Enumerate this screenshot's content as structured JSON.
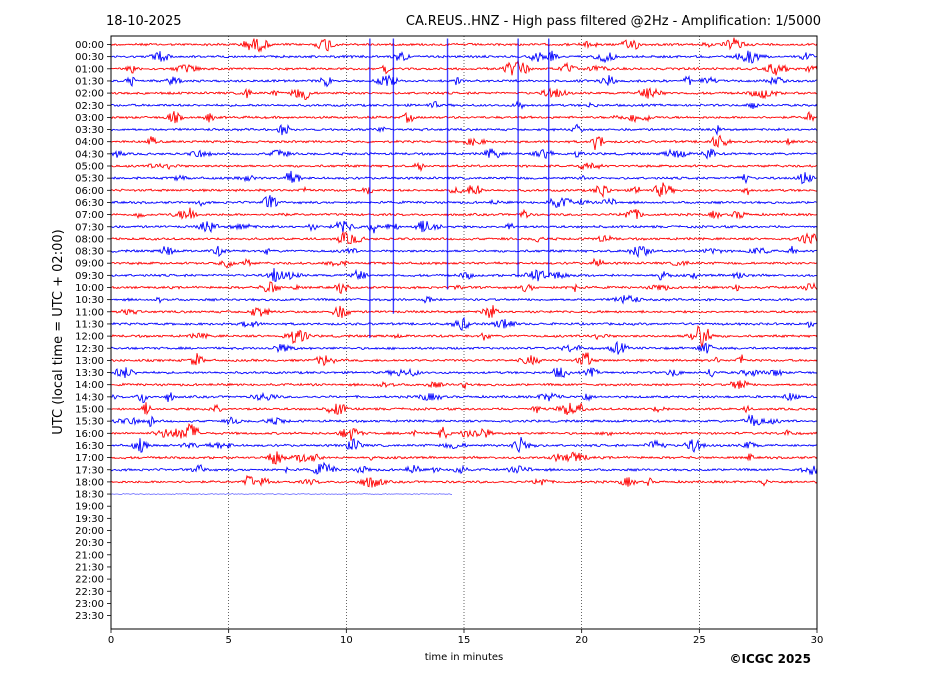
{
  "header": {
    "date": "18-10-2025",
    "title": "CA.REUS..HNZ - High pass filtered @2Hz - Amplification: 1/5000"
  },
  "footer": {
    "copyright": "©ICGC 2025"
  },
  "colors": {
    "trace_a": "#ff0000",
    "trace_b": "#0000ff",
    "axis": "#000000",
    "grid": "#000000"
  },
  "chart_data": {
    "type": "line",
    "title": "CA.REUS..HNZ - High pass filtered @2Hz - Amplification: 1/5000",
    "xlabel": "time in minutes",
    "ylabel": "UTC (local time = UTC + 02:00)",
    "xlim": [
      0,
      30
    ],
    "x_ticks": [
      "0",
      "5",
      "10",
      "15",
      "20",
      "25",
      "30"
    ],
    "y_ticks": [
      "00:00",
      "00:30",
      "01:00",
      "01:30",
      "02:00",
      "02:30",
      "03:00",
      "03:30",
      "04:00",
      "04:30",
      "05:00",
      "05:30",
      "06:00",
      "06:30",
      "07:00",
      "07:30",
      "08:00",
      "08:30",
      "09:00",
      "09:30",
      "10:00",
      "10:30",
      "11:00",
      "11:30",
      "12:00",
      "12:30",
      "13:00",
      "13:30",
      "14:00",
      "14:30",
      "15:00",
      "15:30",
      "16:00",
      "16:30",
      "17:00",
      "17:30",
      "18:00",
      "18:30",
      "19:00",
      "19:30",
      "20:00",
      "20:30",
      "21:00",
      "21:30",
      "22:00",
      "22:30",
      "23:00",
      "23:30"
    ],
    "grid_x": true,
    "trace_color_order": [
      "#ff0000",
      "#0000ff"
    ],
    "rows_recorded": 38,
    "last_row_minutes": 14.5,
    "spikes": [
      {
        "minute": 11.0,
        "from_row": 0,
        "to_row": 24
      },
      {
        "minute": 12.0,
        "from_row": 0,
        "to_row": 22
      },
      {
        "minute": 14.3,
        "from_row": 0,
        "to_row": 20
      },
      {
        "minute": 17.3,
        "from_row": 0,
        "to_row": 19
      },
      {
        "minute": 18.6,
        "from_row": 0,
        "to_row": 19
      }
    ]
  }
}
